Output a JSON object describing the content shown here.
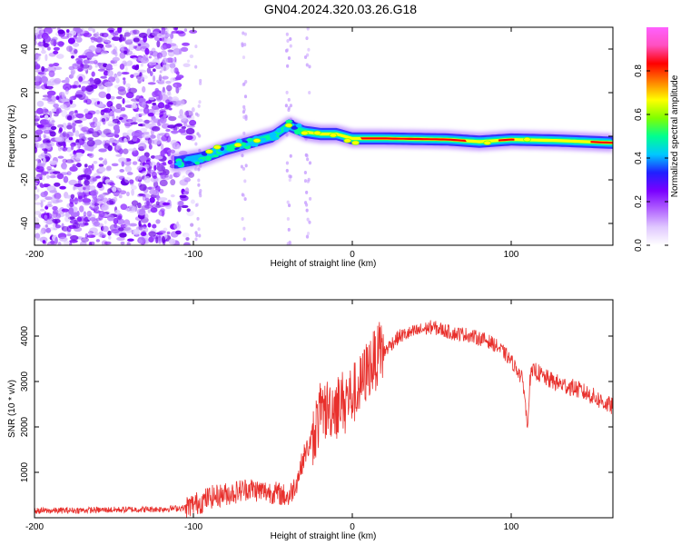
{
  "title": "GN04.2024.320.03.26.G18",
  "chart_data": [
    {
      "type": "heatmap",
      "xlabel": "Height of straight line (km)",
      "ylabel": "Frequency (Hz)",
      "xlim": [
        -200,
        164
      ],
      "ylim": [
        -50,
        50
      ],
      "xticks": [
        -200,
        -100,
        0,
        100
      ],
      "yticks": [
        -40,
        -20,
        0,
        20,
        40
      ],
      "colorbar": {
        "label": "Normalized spectral amplitude",
        "range": [
          0,
          1
        ],
        "ticks": [
          0.0,
          0.2,
          0.4,
          0.6,
          0.8
        ],
        "colors": [
          "#ffffff",
          "#e0c8ff",
          "#b060ff",
          "#7a00ff",
          "#2020ff",
          "#00c8ff",
          "#00ff90",
          "#80ff00",
          "#ffff00",
          "#ff8000",
          "#ff0000",
          "#ff50c0",
          "#ff60ff"
        ]
      },
      "ridge": [
        {
          "x": -110,
          "y": -12
        },
        {
          "x": -95,
          "y": -10
        },
        {
          "x": -80,
          "y": -6
        },
        {
          "x": -65,
          "y": -3
        },
        {
          "x": -50,
          "y": 0
        },
        {
          "x": -40,
          "y": 5
        },
        {
          "x": -30,
          "y": 2
        },
        {
          "x": -20,
          "y": 1
        },
        {
          "x": -10,
          "y": 1
        },
        {
          "x": 0,
          "y": -1
        },
        {
          "x": 20,
          "y": -1
        },
        {
          "x": 60,
          "y": -1.5
        },
        {
          "x": 80,
          "y": -2.5
        },
        {
          "x": 100,
          "y": -1.5
        },
        {
          "x": 130,
          "y": -2
        },
        {
          "x": 164,
          "y": -3
        }
      ]
    },
    {
      "type": "line",
      "xlabel": "Height of straight line (km)",
      "ylabel": "SNR (10 * v/v)",
      "xlim": [
        -200,
        164
      ],
      "ylim": [
        0,
        4800
      ],
      "xticks": [
        -200,
        -100,
        0,
        100
      ],
      "yticks": [
        1000,
        2000,
        3000,
        4000
      ],
      "series": [
        {
          "color": "#e8302c",
          "x": [
            -200,
            -180,
            -160,
            -140,
            -120,
            -105,
            -100,
            -95,
            -90,
            -85,
            -80,
            -75,
            -70,
            -65,
            -60,
            -55,
            -50,
            -45,
            -40,
            -35,
            -30,
            -27,
            -25,
            -22,
            -20,
            -15,
            -10,
            -5,
            0,
            5,
            10,
            15,
            20,
            25,
            30,
            35,
            40,
            45,
            50,
            55,
            60,
            65,
            70,
            75,
            80,
            85,
            90,
            95,
            100,
            105,
            108,
            110,
            112,
            115,
            120,
            130,
            140,
            150,
            160,
            164
          ],
          "y": [
            150,
            160,
            170,
            180,
            190,
            220,
            300,
            350,
            450,
            480,
            520,
            550,
            600,
            650,
            600,
            580,
            560,
            520,
            450,
            800,
            1400,
            1600,
            1800,
            2100,
            2300,
            2400,
            2500,
            2600,
            2700,
            2900,
            3300,
            3500,
            3650,
            3850,
            4000,
            4050,
            4100,
            4150,
            4200,
            4150,
            4100,
            4050,
            4050,
            4000,
            3950,
            3900,
            3800,
            3650,
            3450,
            3200,
            2900,
            2000,
            3100,
            3250,
            3100,
            2950,
            2850,
            2700,
            2500,
            2450
          ]
        }
      ]
    }
  ]
}
